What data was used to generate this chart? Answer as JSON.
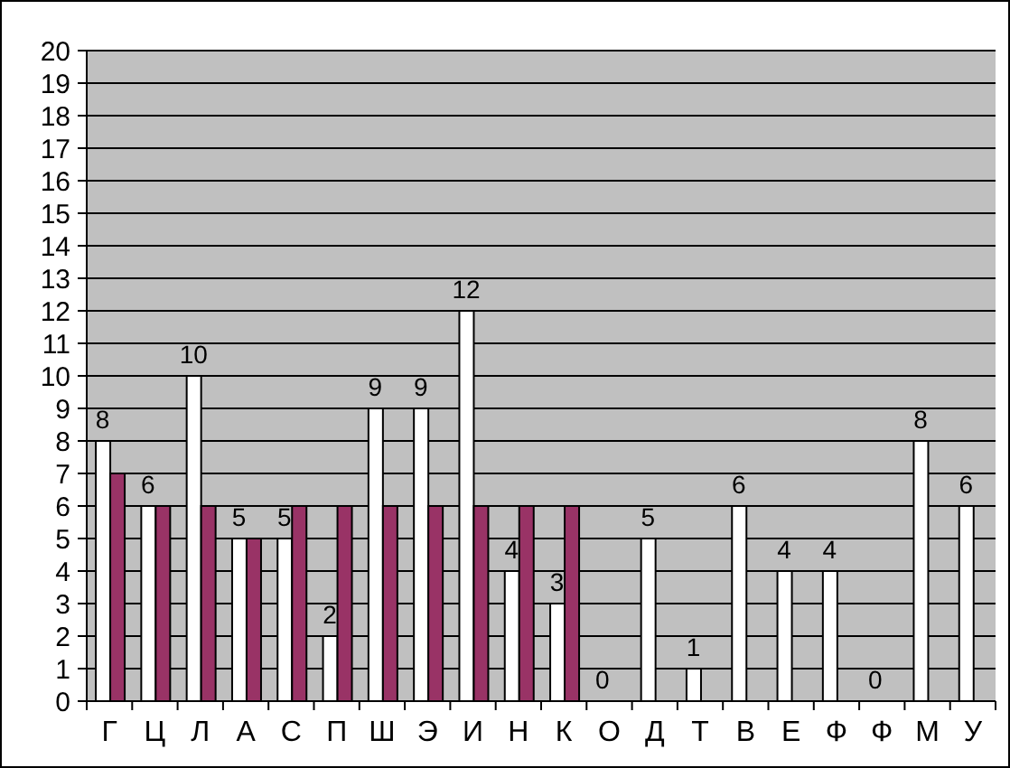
{
  "chart_data": {
    "type": "bar",
    "categories": [
      "Г",
      "Ц",
      "Л",
      "А",
      "С",
      "П",
      "Ш",
      "Э",
      "И",
      "Н",
      "К",
      "О",
      "Д",
      "Т",
      "В",
      "Е",
      "Ф",
      "Ф",
      "М",
      "У"
    ],
    "series": [
      {
        "color": "#ffffff",
        "values": [
          8,
          6,
          10,
          5,
          5,
          2,
          9,
          9,
          12,
          4,
          3,
          0,
          5,
          1,
          6,
          4,
          4,
          0,
          8,
          6
        ],
        "value_labels": [
          "8",
          "6",
          "10",
          "5",
          "5",
          "2",
          "9",
          "9",
          "12",
          "4",
          "3",
          "0",
          "5",
          "1",
          "6",
          "4",
          "4",
          "0",
          "8",
          "6"
        ]
      },
      {
        "color": "#993366",
        "values": [
          7,
          6,
          6,
          5,
          6,
          6,
          6,
          6,
          6,
          6,
          6,
          null,
          null,
          null,
          null,
          null,
          null,
          null,
          null,
          null
        ]
      }
    ],
    "ylim": [
      0,
      20
    ],
    "yticks": [
      0,
      1,
      2,
      3,
      4,
      5,
      6,
      7,
      8,
      9,
      10,
      11,
      12,
      13,
      14,
      15,
      16,
      17,
      18,
      19,
      20
    ],
    "grid": "y"
  }
}
